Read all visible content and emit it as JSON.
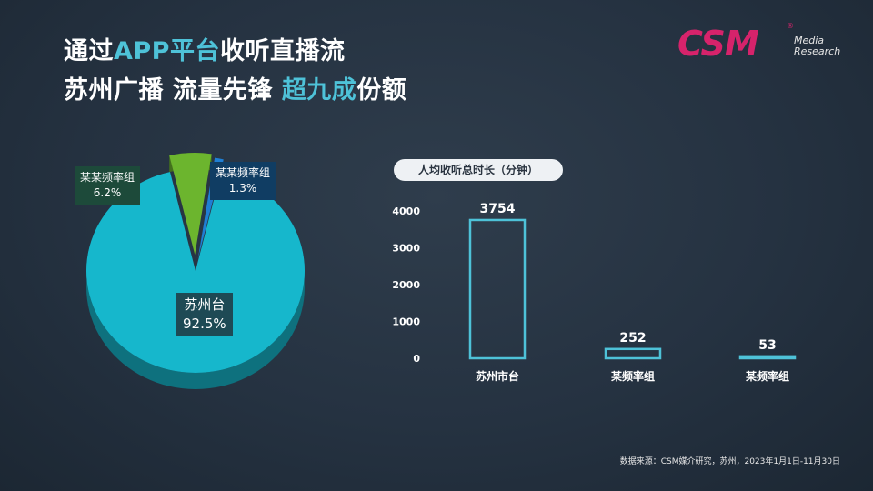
{
  "title": {
    "line1_a": "通过",
    "line1_b": "APP平台",
    "line1_c": "收听直播流",
    "line2_a": "苏州广播 流量先锋 ",
    "line2_b": "超九成",
    "line2_c": "份额"
  },
  "logo": {
    "brand": "CSM",
    "registered": "®",
    "line1": "Media",
    "line2": "Research"
  },
  "colors": {
    "accent": "#4ec2d8",
    "brand": "#d6236b",
    "pie_main": "#16b7cc",
    "pie_green": "#6cb52e",
    "pie_blue": "#1f7fd4"
  },
  "chart_data": [
    {
      "type": "pie",
      "slices": [
        {
          "label": "苏州台",
          "value": 92.5,
          "value_label": "92.5%",
          "color": "#16b7cc"
        },
        {
          "label": "某某频率组",
          "value": 6.2,
          "value_label": "6.2%",
          "color": "#6cb52e"
        },
        {
          "label": "某某频率组",
          "value": 1.3,
          "value_label": "1.3%",
          "color": "#1f7fd4"
        }
      ]
    },
    {
      "type": "bar",
      "title": "人均收听总时长（分钟）",
      "categories": [
        "苏州市台",
        "某频率组",
        "某频率组"
      ],
      "values": [
        3754,
        252,
        53
      ],
      "value_labels": [
        "3754",
        "252",
        "53"
      ],
      "ylim": [
        0,
        4000
      ],
      "yticks": [
        0,
        1000,
        2000,
        3000,
        4000
      ],
      "bar_color": "#4ec2d8",
      "grid": false
    }
  ],
  "footer": "数据来源：CSM媒介研究，苏州，2023年1月1日-11月30日"
}
